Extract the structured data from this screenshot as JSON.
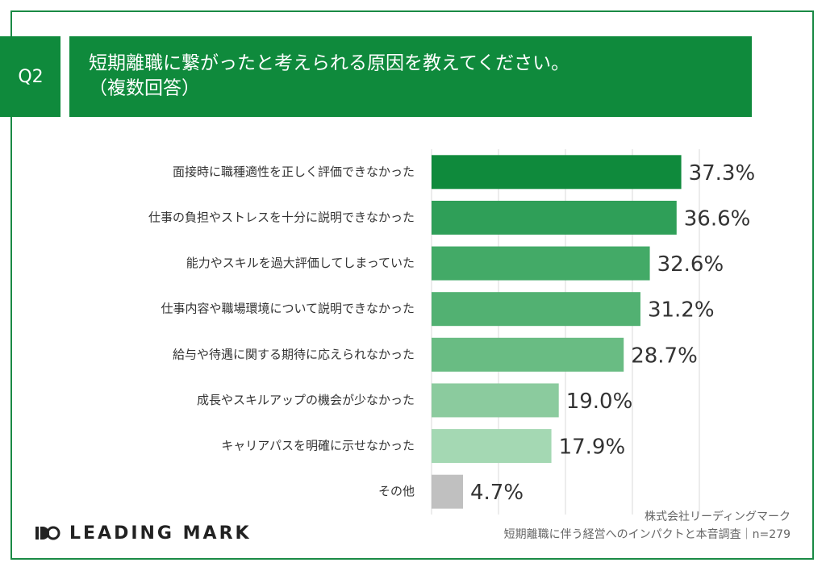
{
  "question": "Q2",
  "chart_data": {
    "type": "hbar",
    "title": "短期離職に繋がったと考えられる原因を教えてください。",
    "subtitle": "（複数回答）",
    "categories": [
      "面接時に職種適性を正しく評価できなかった",
      "仕事の負担やストレスを十分に説明できなかった",
      "能力やスキルを過大評価してしまっていた",
      "仕事内容や職場環境について説明できなかった",
      "給与や待遇に関する期待に応えられなかった",
      "成長やスキルアップの機会が少なかった",
      "キャリアパスを明確に示せなかった",
      "その他"
    ],
    "values": [
      37.3,
      36.6,
      32.6,
      31.2,
      28.7,
      19.0,
      17.9,
      4.7
    ],
    "value_labels": [
      "37.3%",
      "36.6%",
      "32.6%",
      "31.2%",
      "28.7%",
      "19.0%",
      "17.9%",
      "4.7%"
    ],
    "colors": [
      "#0f8a3c",
      "#2f9f58",
      "#43aa67",
      "#52b172",
      "#69bc83",
      "#8bcb9e",
      "#a4d8b3",
      "#c0c0c0"
    ],
    "xlim": [
      0,
      50
    ],
    "xticks": [
      0,
      10,
      20,
      30,
      40
    ],
    "grid": true
  },
  "footer": {
    "logo": "LEADING MARK",
    "source": "株式会社リーディングマーク",
    "survey": "短期離職に伴う経営へのインパクトと本音調査｜n=279"
  }
}
